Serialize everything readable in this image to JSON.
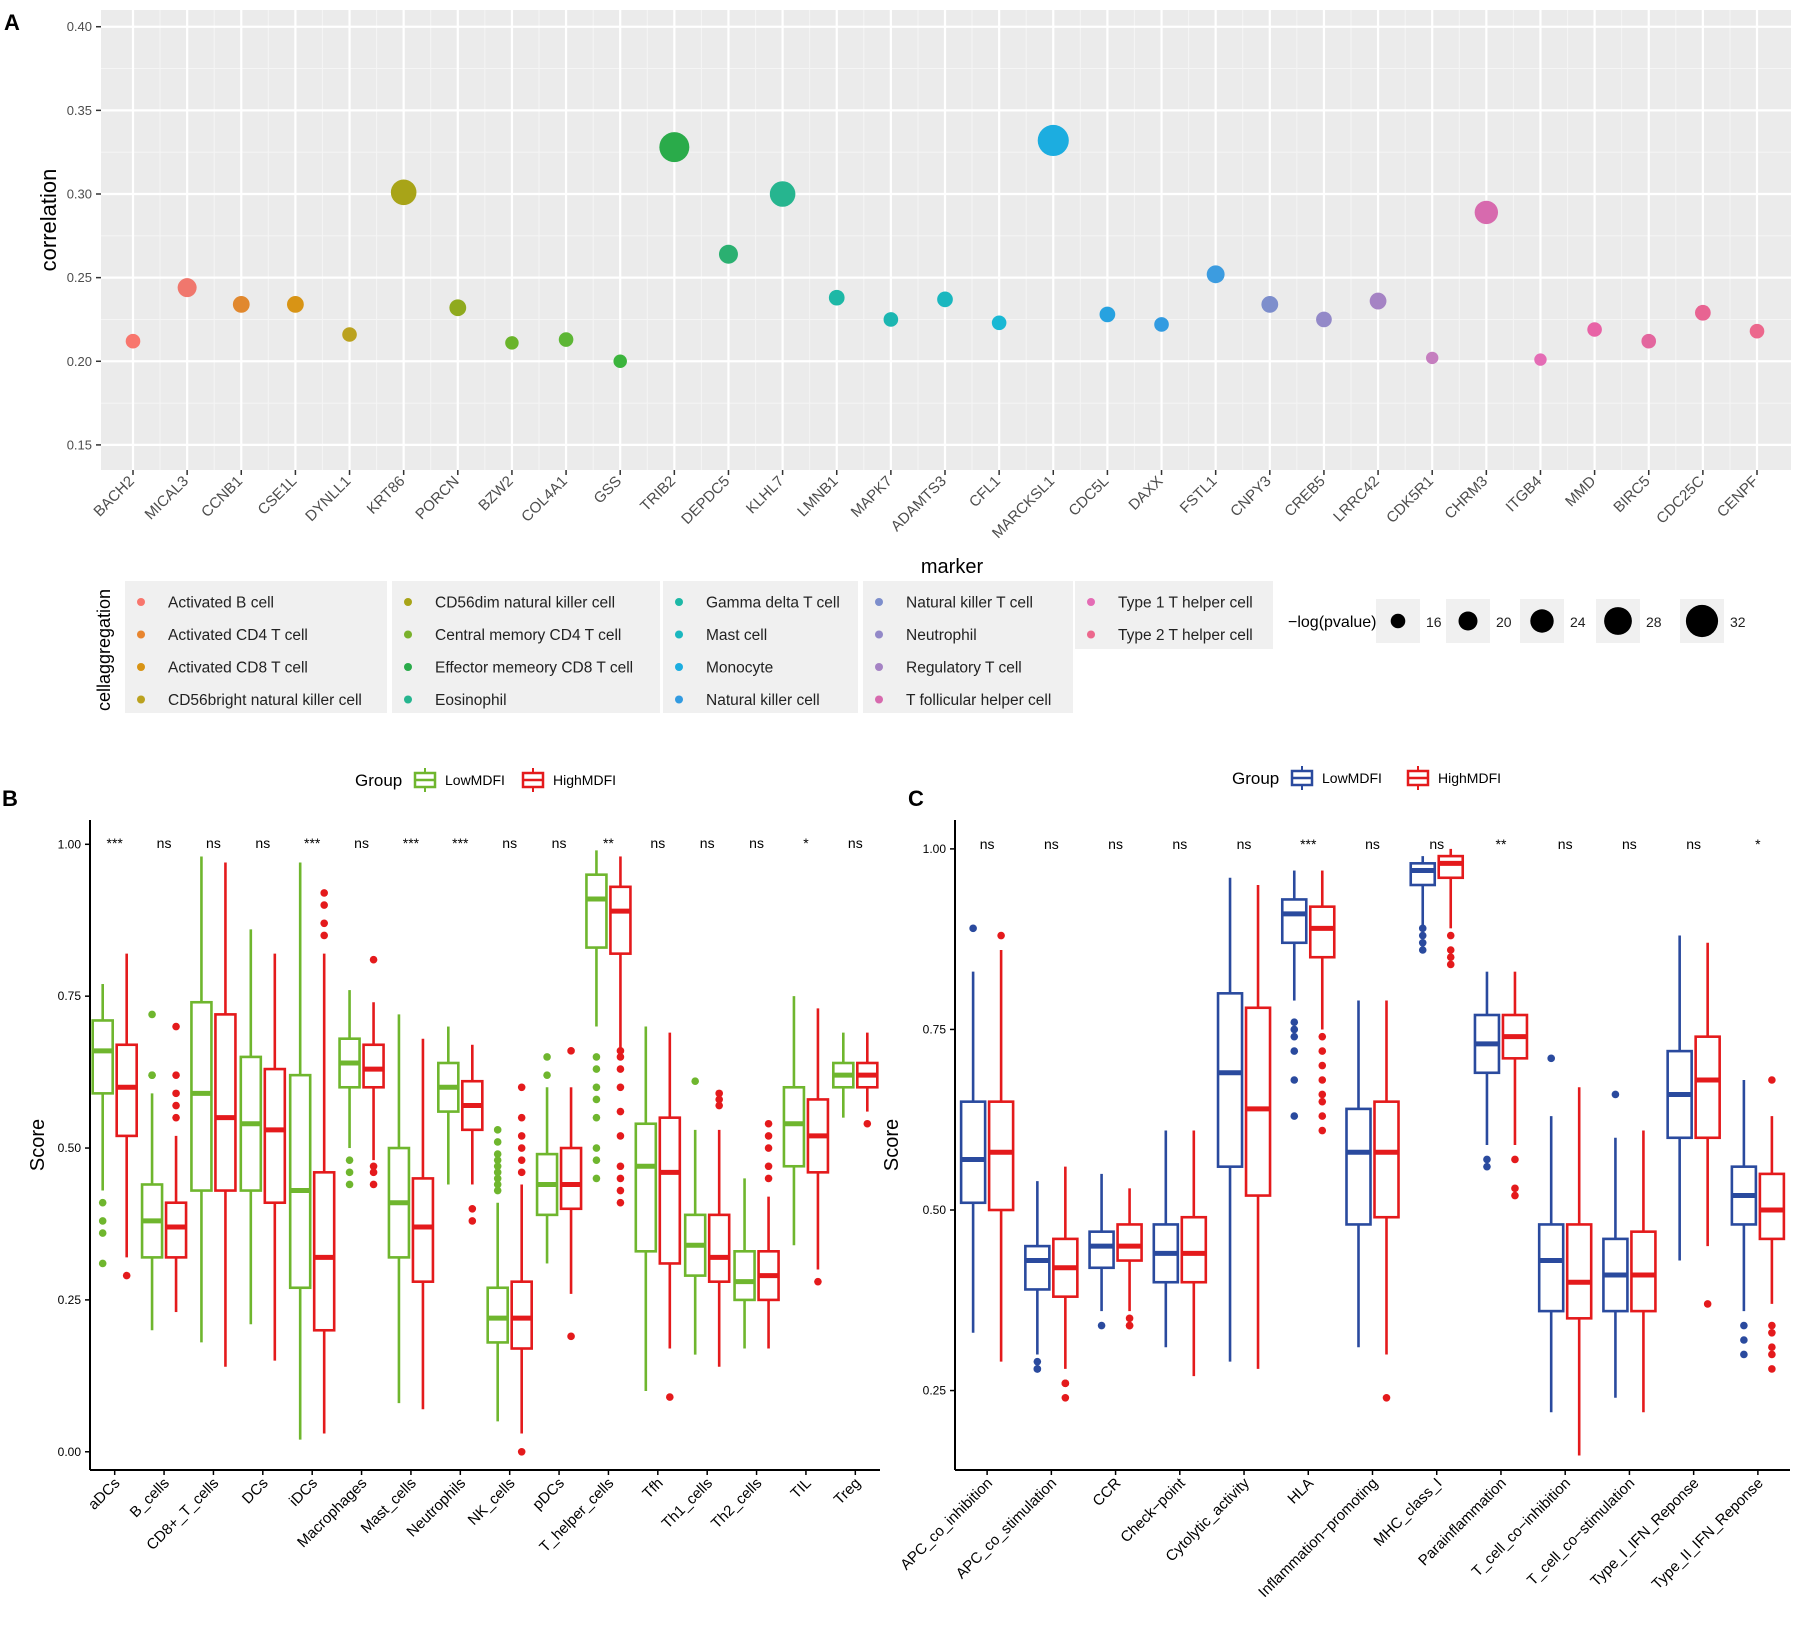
{
  "chart_data": [
    {
      "panel": "A",
      "type": "scatter",
      "xlabel": "marker",
      "ylabel": "correlation",
      "ylim": [
        0.135,
        0.41
      ],
      "yticks": [
        0.15,
        0.2,
        0.25,
        0.3,
        0.35,
        0.4
      ],
      "ytick_labels": [
        "0.15",
        "0.20",
        "0.25",
        "0.30",
        "0.35",
        "0.40"
      ],
      "markers": [
        "BACH2",
        "MICAL3",
        "CCNB1",
        "CSE1L",
        "DYNLL1",
        "KRT86",
        "PORCN",
        "BZW2",
        "COL4A1",
        "GSS",
        "TRIB2",
        "DEPDC5",
        "KLHL7",
        "LMNB1",
        "MAPK7",
        "ADAMTS3",
        "CFL1",
        "MARCKSL1",
        "CDC5L",
        "DAXX",
        "FSTL1",
        "CNPY3",
        "CREB5",
        "LRRC42",
        "CDK5R1",
        "CHRM3",
        "ITGB4",
        "MMD",
        "BIRC5",
        "CDC25C",
        "CENPF"
      ],
      "correlation": [
        0.212,
        0.244,
        0.234,
        0.234,
        0.216,
        0.301,
        0.232,
        0.211,
        0.213,
        0.2,
        0.328,
        0.264,
        0.3,
        0.238,
        0.225,
        0.237,
        0.223,
        0.332,
        0.228,
        0.222,
        0.252,
        0.234,
        0.225,
        0.236,
        0.202,
        0.289,
        0.201,
        0.219,
        0.212,
        0.229,
        0.218
      ],
      "neg_log_pvalue": [
        16,
        20,
        18,
        18,
        16,
        26,
        18,
        15,
        16,
        15,
        30,
        20,
        26,
        17,
        16,
        17,
        16,
        31,
        17,
        16,
        19,
        18,
        17,
        18,
        14,
        24,
        14,
        16,
        16,
        17,
        16
      ],
      "color": [
        "#F8766D",
        "#F0776D",
        "#E1882E",
        "#D89415",
        "#BBA21F",
        "#A8A418",
        "#8FAA1E",
        "#6AB42A",
        "#5DB635",
        "#3BB43C",
        "#2AAB4A",
        "#2BB071",
        "#26B58F",
        "#1DB8A6",
        "#1BB6B1",
        "#1AB7BF",
        "#19B8D4",
        "#1CADE0",
        "#27A2E0",
        "#329BE1",
        "#3C9CE0",
        "#7D8ECC",
        "#9389C8",
        "#A583C4",
        "#C57EBF",
        "#D76AAE",
        "#E46CB5",
        "#E863A6",
        "#E3669E",
        "#E86492",
        "#EC688D"
      ],
      "legend": {
        "title": "cellaggregation",
        "items": [
          {
            "label": "Activated B cell",
            "color": "#F8766D"
          },
          {
            "label": "Activated CD4 T cell",
            "color": "#E8852F"
          },
          {
            "label": "Activated CD8 T cell",
            "color": "#D89415"
          },
          {
            "label": "CD56bright natural killer cell",
            "color": "#BBA21F"
          },
          {
            "label": "CD56dim natural killer cell",
            "color": "#A8A418"
          },
          {
            "label": "Central memory CD4 T cell",
            "color": "#79B12B"
          },
          {
            "label": "Effector memeory CD8 T cell",
            "color": "#2AAB4A"
          },
          {
            "label": "Eosinophil",
            "color": "#26B58F"
          },
          {
            "label": "Gamma delta T cell",
            "color": "#1DB8A6"
          },
          {
            "label": "Mast cell",
            "color": "#1AB7BF"
          },
          {
            "label": "Monocyte",
            "color": "#1CADE0"
          },
          {
            "label": "Natural killer cell",
            "color": "#329BE1"
          },
          {
            "label": "Natural killer T cell",
            "color": "#7D8ECC"
          },
          {
            "label": "Neutrophil",
            "color": "#9389C8"
          },
          {
            "label": "Regulatory T cell",
            "color": "#A583C4"
          },
          {
            "label": "T follicular helper cell",
            "color": "#D76AAE"
          },
          {
            "label": "Type 1 T helper cell",
            "color": "#E46CB5"
          },
          {
            "label": "Type 2 T helper cell",
            "color": "#EC688D"
          }
        ]
      },
      "size_legend": {
        "title": "−log(pvalue)",
        "values": [
          16,
          20,
          24,
          28,
          32
        ],
        "labels": [
          "16",
          "20",
          "24",
          "28",
          "32"
        ]
      }
    },
    {
      "panel": "B",
      "type": "box",
      "xlabel": "",
      "ylabel": "Score",
      "ylim": [
        -0.03,
        1.04
      ],
      "yticks": [
        0,
        0.25,
        0.5,
        0.75,
        1.0
      ],
      "ytick_labels": [
        "0.00",
        "0.25",
        "0.50",
        "0.75",
        "1.00"
      ],
      "legend_title": "Group",
      "series": [
        {
          "name": "LowMDFI",
          "color": "#6FB62E"
        },
        {
          "name": "HighMDFI",
          "color": "#E41A1C"
        }
      ],
      "categories": [
        "aDCs",
        "B_cells",
        "CD8+_T_cells",
        "DCs",
        "iDCs",
        "Macrophages",
        "Mast_cells",
        "Neutrophils",
        "NK_cells",
        "pDCs",
        "T_helper_cells",
        "Tfh",
        "Th1_cells",
        "Th2_cells",
        "TIL",
        "Treg"
      ],
      "significance": [
        "***",
        "ns",
        "ns",
        "ns",
        "***",
        "ns",
        "***",
        "***",
        "ns",
        "ns",
        "**",
        "ns",
        "ns",
        "ns",
        "*",
        "ns"
      ],
      "low": [
        {
          "min": 0.43,
          "q1": 0.59,
          "median": 0.66,
          "q3": 0.71,
          "max": 0.77,
          "outliers": [
            0.31,
            0.36,
            0.38,
            0.41
          ]
        },
        {
          "min": 0.2,
          "q1": 0.32,
          "median": 0.38,
          "q3": 0.44,
          "max": 0.59,
          "outliers": [
            0.62,
            0.62,
            0.72
          ]
        },
        {
          "min": 0.18,
          "q1": 0.43,
          "median": 0.59,
          "q3": 0.74,
          "max": 0.98,
          "outliers": []
        },
        {
          "min": 0.21,
          "q1": 0.43,
          "median": 0.54,
          "q3": 0.65,
          "max": 0.86,
          "outliers": []
        },
        {
          "min": 0.02,
          "q1": 0.27,
          "median": 0.43,
          "q3": 0.62,
          "max": 0.97,
          "outliers": []
        },
        {
          "min": 0.5,
          "q1": 0.6,
          "median": 0.64,
          "q3": 0.68,
          "max": 0.76,
          "outliers": [
            0.44,
            0.46,
            0.48
          ]
        },
        {
          "min": 0.08,
          "q1": 0.32,
          "median": 0.41,
          "q3": 0.5,
          "max": 0.72,
          "outliers": []
        },
        {
          "min": 0.44,
          "q1": 0.56,
          "median": 0.6,
          "q3": 0.64,
          "max": 0.7,
          "outliers": []
        },
        {
          "min": 0.05,
          "q1": 0.18,
          "median": 0.22,
          "q3": 0.27,
          "max": 0.41,
          "outliers": [
            0.43,
            0.44,
            0.45,
            0.46,
            0.47,
            0.48,
            0.49,
            0.51,
            0.53
          ]
        },
        {
          "min": 0.31,
          "q1": 0.39,
          "median": 0.44,
          "q3": 0.49,
          "max": 0.6,
          "outliers": [
            0.62,
            0.65
          ]
        },
        {
          "min": 0.7,
          "q1": 0.83,
          "median": 0.91,
          "q3": 0.95,
          "max": 0.99,
          "outliers": [
            0.45,
            0.48,
            0.5,
            0.55,
            0.58,
            0.6,
            0.63,
            0.65
          ]
        },
        {
          "min": 0.1,
          "q1": 0.33,
          "median": 0.47,
          "q3": 0.54,
          "max": 0.7,
          "outliers": []
        },
        {
          "min": 0.16,
          "q1": 0.29,
          "median": 0.34,
          "q3": 0.39,
          "max": 0.53,
          "outliers": [
            0.61
          ]
        },
        {
          "min": 0.17,
          "q1": 0.25,
          "median": 0.28,
          "q3": 0.33,
          "max": 0.45,
          "outliers": []
        },
        {
          "min": 0.34,
          "q1": 0.47,
          "median": 0.54,
          "q3": 0.6,
          "max": 0.75,
          "outliers": []
        },
        {
          "min": 0.55,
          "q1": 0.6,
          "median": 0.62,
          "q3": 0.64,
          "max": 0.69,
          "outliers": []
        }
      ],
      "high": [
        {
          "min": 0.32,
          "q1": 0.52,
          "median": 0.6,
          "q3": 0.67,
          "max": 0.82,
          "outliers": [
            0.29
          ]
        },
        {
          "min": 0.23,
          "q1": 0.32,
          "median": 0.37,
          "q3": 0.41,
          "max": 0.52,
          "outliers": [
            0.55,
            0.57,
            0.59,
            0.62,
            0.7
          ]
        },
        {
          "min": 0.14,
          "q1": 0.43,
          "median": 0.55,
          "q3": 0.72,
          "max": 0.97,
          "outliers": []
        },
        {
          "min": 0.15,
          "q1": 0.41,
          "median": 0.53,
          "q3": 0.63,
          "max": 0.82,
          "outliers": []
        },
        {
          "min": 0.03,
          "q1": 0.2,
          "median": 0.32,
          "q3": 0.46,
          "max": 0.82,
          "outliers": [
            0.85,
            0.87,
            0.9,
            0.92
          ]
        },
        {
          "min": 0.48,
          "q1": 0.6,
          "median": 0.63,
          "q3": 0.67,
          "max": 0.74,
          "outliers": [
            0.44,
            0.46,
            0.47,
            0.81
          ]
        },
        {
          "min": 0.07,
          "q1": 0.28,
          "median": 0.37,
          "q3": 0.45,
          "max": 0.68,
          "outliers": []
        },
        {
          "min": 0.44,
          "q1": 0.53,
          "median": 0.57,
          "q3": 0.61,
          "max": 0.67,
          "outliers": [
            0.38,
            0.4
          ]
        },
        {
          "min": 0.03,
          "q1": 0.17,
          "median": 0.22,
          "q3": 0.28,
          "max": 0.44,
          "outliers": [
            0.0,
            0.46,
            0.48,
            0.5,
            0.52,
            0.55,
            0.6
          ]
        },
        {
          "min": 0.26,
          "q1": 0.4,
          "median": 0.44,
          "q3": 0.5,
          "max": 0.6,
          "outliers": [
            0.19,
            0.66
          ]
        },
        {
          "min": 0.66,
          "q1": 0.82,
          "median": 0.89,
          "q3": 0.93,
          "max": 0.98,
          "outliers": [
            0.41,
            0.43,
            0.45,
            0.47,
            0.52,
            0.56,
            0.6,
            0.63,
            0.65,
            0.66
          ]
        },
        {
          "min": 0.17,
          "q1": 0.31,
          "median": 0.46,
          "q3": 0.55,
          "max": 0.69,
          "outliers": [
            0.09
          ]
        },
        {
          "min": 0.14,
          "q1": 0.28,
          "median": 0.32,
          "q3": 0.39,
          "max": 0.53,
          "outliers": [
            0.57,
            0.58,
            0.59
          ]
        },
        {
          "min": 0.17,
          "q1": 0.25,
          "median": 0.29,
          "q3": 0.33,
          "max": 0.42,
          "outliers": [
            0.45,
            0.47,
            0.5,
            0.52,
            0.54
          ]
        },
        {
          "min": 0.3,
          "q1": 0.46,
          "median": 0.52,
          "q3": 0.58,
          "max": 0.73,
          "outliers": [
            0.28
          ]
        },
        {
          "min": 0.56,
          "q1": 0.6,
          "median": 0.62,
          "q3": 0.64,
          "max": 0.69,
          "outliers": [
            0.54
          ]
        }
      ]
    },
    {
      "panel": "C",
      "type": "box",
      "xlabel": "",
      "ylabel": "Score",
      "ylim": [
        0.14,
        1.04
      ],
      "yticks": [
        0.25,
        0.5,
        0.75,
        1.0
      ],
      "ytick_labels": [
        "0.25",
        "0.50",
        "0.75",
        "1.00"
      ],
      "legend_title": "Group",
      "series": [
        {
          "name": "LowMDFI",
          "color": "#2A4A9E"
        },
        {
          "name": "HighMDFI",
          "color": "#E41A1C"
        }
      ],
      "categories": [
        "APC_co_inhibition",
        "APC_co_stimulation",
        "CCR",
        "Check−point",
        "Cytolytic_activity",
        "HLA",
        "Inflammation−promoting",
        "MHC_class_I",
        "Parainflammation",
        "T_cell_co−inhibition",
        "T_cell_co−stimulation",
        "Type_I_IFN_Reponse",
        "Type_II_IFN_Reponse"
      ],
      "significance": [
        "ns",
        "ns",
        "ns",
        "ns",
        "ns",
        "***",
        "ns",
        "ns",
        "**",
        "ns",
        "ns",
        "ns",
        "*"
      ],
      "low": [
        {
          "min": 0.33,
          "q1": 0.51,
          "median": 0.57,
          "q3": 0.65,
          "max": 0.83,
          "outliers": [
            0.89
          ]
        },
        {
          "min": 0.3,
          "q1": 0.39,
          "median": 0.43,
          "q3": 0.45,
          "max": 0.54,
          "outliers": [
            0.28,
            0.28,
            0.29
          ]
        },
        {
          "min": 0.36,
          "q1": 0.42,
          "median": 0.45,
          "q3": 0.47,
          "max": 0.55,
          "outliers": [
            0.34
          ]
        },
        {
          "min": 0.31,
          "q1": 0.4,
          "median": 0.44,
          "q3": 0.48,
          "max": 0.61,
          "outliers": []
        },
        {
          "min": 0.29,
          "q1": 0.56,
          "median": 0.69,
          "q3": 0.8,
          "max": 0.96,
          "outliers": []
        },
        {
          "min": 0.79,
          "q1": 0.87,
          "median": 0.91,
          "q3": 0.93,
          "max": 0.97,
          "outliers": [
            0.63,
            0.68,
            0.72,
            0.74,
            0.75,
            0.76
          ]
        },
        {
          "min": 0.31,
          "q1": 0.48,
          "median": 0.58,
          "q3": 0.64,
          "max": 0.79,
          "outliers": []
        },
        {
          "min": 0.89,
          "q1": 0.95,
          "median": 0.97,
          "q3": 0.98,
          "max": 0.99,
          "outliers": [
            0.86,
            0.87,
            0.88,
            0.89
          ]
        },
        {
          "min": 0.59,
          "q1": 0.69,
          "median": 0.73,
          "q3": 0.77,
          "max": 0.83,
          "outliers": [
            0.56,
            0.57
          ]
        },
        {
          "min": 0.22,
          "q1": 0.36,
          "median": 0.43,
          "q3": 0.48,
          "max": 0.63,
          "outliers": [
            0.71
          ]
        },
        {
          "min": 0.24,
          "q1": 0.36,
          "median": 0.41,
          "q3": 0.46,
          "max": 0.6,
          "outliers": [
            0.66
          ]
        },
        {
          "min": 0.43,
          "q1": 0.6,
          "median": 0.66,
          "q3": 0.72,
          "max": 0.88,
          "outliers": []
        },
        {
          "min": 0.36,
          "q1": 0.48,
          "median": 0.52,
          "q3": 0.56,
          "max": 0.68,
          "outliers": [
            0.3,
            0.32,
            0.34
          ]
        }
      ],
      "high": [
        {
          "min": 0.29,
          "q1": 0.5,
          "median": 0.58,
          "q3": 0.65,
          "max": 0.86,
          "outliers": [
            0.88
          ]
        },
        {
          "min": 0.28,
          "q1": 0.38,
          "median": 0.42,
          "q3": 0.46,
          "max": 0.56,
          "outliers": [
            0.24,
            0.26,
            0.26
          ]
        },
        {
          "min": 0.36,
          "q1": 0.43,
          "median": 0.45,
          "q3": 0.48,
          "max": 0.53,
          "outliers": [
            0.34,
            0.34,
            0.35
          ]
        },
        {
          "min": 0.27,
          "q1": 0.4,
          "median": 0.44,
          "q3": 0.49,
          "max": 0.61,
          "outliers": []
        },
        {
          "min": 0.28,
          "q1": 0.52,
          "median": 0.64,
          "q3": 0.78,
          "max": 0.95,
          "outliers": []
        },
        {
          "min": 0.75,
          "q1": 0.85,
          "median": 0.89,
          "q3": 0.92,
          "max": 0.97,
          "outliers": [
            0.61,
            0.63,
            0.65,
            0.66,
            0.68,
            0.7,
            0.72,
            0.74
          ]
        },
        {
          "min": 0.3,
          "q1": 0.49,
          "median": 0.58,
          "q3": 0.65,
          "max": 0.79,
          "outliers": [
            0.24
          ]
        },
        {
          "min": 0.89,
          "q1": 0.96,
          "median": 0.98,
          "q3": 0.99,
          "max": 1.0,
          "outliers": [
            0.84,
            0.85,
            0.86,
            0.88
          ]
        },
        {
          "min": 0.59,
          "q1": 0.71,
          "median": 0.74,
          "q3": 0.77,
          "max": 0.83,
          "outliers": [
            0.52,
            0.53,
            0.57
          ]
        },
        {
          "min": 0.16,
          "q1": 0.35,
          "median": 0.4,
          "q3": 0.48,
          "max": 0.67,
          "outliers": []
        },
        {
          "min": 0.22,
          "q1": 0.36,
          "median": 0.41,
          "q3": 0.47,
          "max": 0.61,
          "outliers": []
        },
        {
          "min": 0.45,
          "q1": 0.6,
          "median": 0.68,
          "q3": 0.74,
          "max": 0.87,
          "outliers": [
            0.37
          ]
        },
        {
          "min": 0.37,
          "q1": 0.46,
          "median": 0.5,
          "q3": 0.55,
          "max": 0.63,
          "outliers": [
            0.28,
            0.3,
            0.31,
            0.33,
            0.34,
            0.68
          ]
        }
      ]
    }
  ]
}
